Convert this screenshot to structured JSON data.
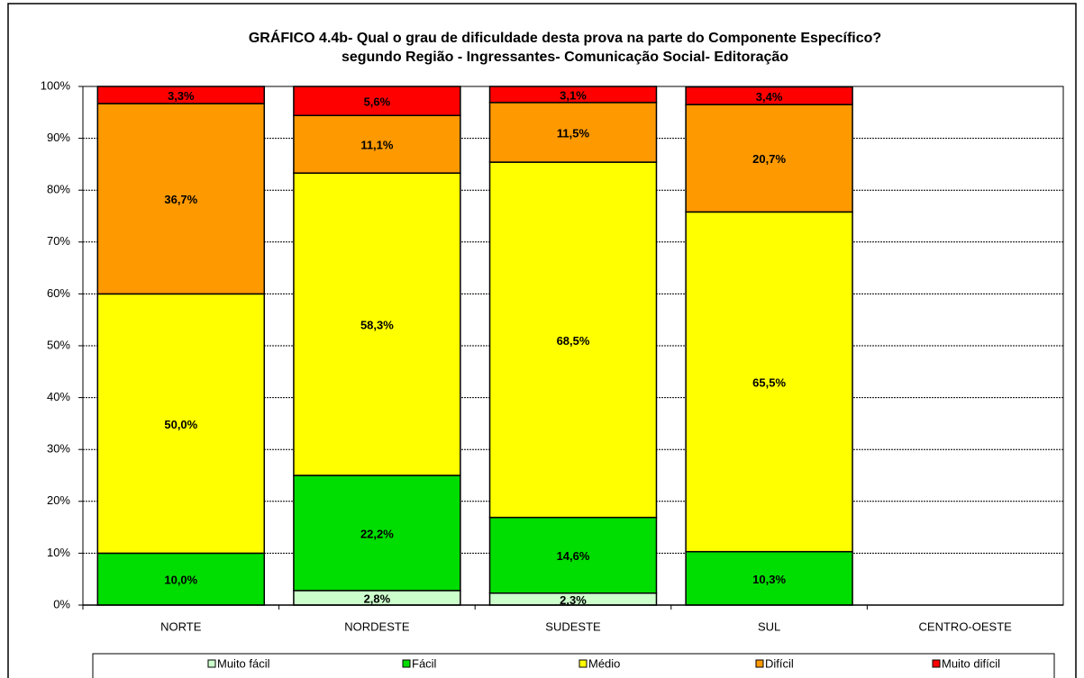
{
  "chart_data": {
    "type": "stacked-bar",
    "title": "GRÁFICO 4.4b- Qual o grau de dificuldade desta prova na parte do Componente Específico?",
    "subtitle": "segundo Região - Ingressantes- Comunicação Social- Editoração",
    "categories": [
      "NORTE",
      "NORDESTE",
      "SUDESTE",
      "SUL",
      "CENTRO-OESTE"
    ],
    "series": [
      {
        "name": "Muito fácil",
        "color": "#ccffcc",
        "values": [
          null,
          2.8,
          2.3,
          null,
          null
        ],
        "value_labels": [
          null,
          "2,8%",
          "2,3%",
          null,
          null
        ]
      },
      {
        "name": "Fácil",
        "color": "#00dd00",
        "values": [
          10.0,
          22.2,
          14.6,
          10.3,
          null
        ],
        "value_labels": [
          "10,0%",
          "22,2%",
          "14,6%",
          "10,3%",
          null
        ]
      },
      {
        "name": "Médio",
        "color": "#ffff00",
        "values": [
          50.0,
          58.3,
          68.5,
          65.5,
          null
        ],
        "value_labels": [
          "50,0%",
          "58,3%",
          "68,5%",
          "65,5%",
          null
        ]
      },
      {
        "name": "Difícil",
        "color": "#ff9900",
        "values": [
          36.7,
          11.1,
          11.5,
          20.7,
          null
        ],
        "value_labels": [
          "36,7%",
          "11,1%",
          "11,5%",
          "20,7%",
          null
        ]
      },
      {
        "name": "Muito difícil",
        "color": "#ff0000",
        "values": [
          3.3,
          5.6,
          3.1,
          3.4,
          null
        ],
        "value_labels": [
          "3,3%",
          "5,6%",
          "3,1%",
          "3,4%",
          null
        ]
      }
    ],
    "ylim": [
      0,
      100
    ],
    "yticks": [
      {
        "value": 0,
        "label": "0%"
      },
      {
        "value": 10,
        "label": "10%"
      },
      {
        "value": 20,
        "label": "20%"
      },
      {
        "value": 30,
        "label": "30%"
      },
      {
        "value": 40,
        "label": "40%"
      },
      {
        "value": 50,
        "label": "50%"
      },
      {
        "value": 60,
        "label": "60%"
      },
      {
        "value": 70,
        "label": "70%"
      },
      {
        "value": 80,
        "label": "80%"
      },
      {
        "value": 90,
        "label": "90%"
      },
      {
        "value": 100,
        "label": "100%"
      }
    ],
    "grid": true,
    "legend": "bottom"
  }
}
